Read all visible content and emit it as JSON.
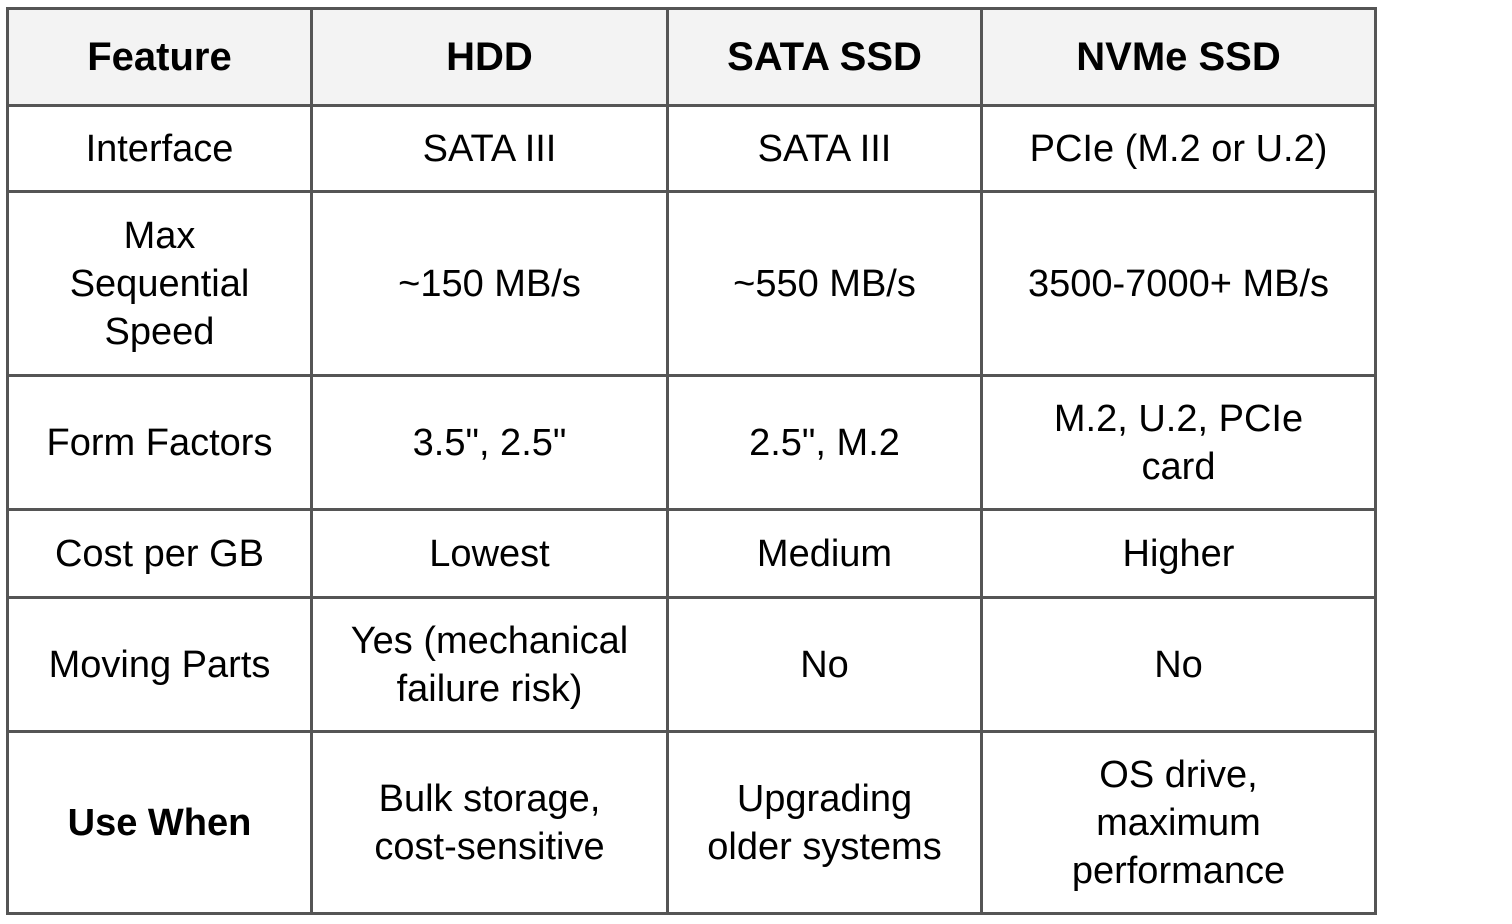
{
  "table": {
    "headers": [
      "Feature",
      "HDD",
      "SATA SSD",
      "NVMe SSD"
    ],
    "rows": [
      {
        "feature": "Interface",
        "hdd": "SATA III",
        "sata_ssd": "SATA III",
        "nvme_ssd": "PCIe (M.2 or U.2)"
      },
      {
        "feature": "Max Sequential Speed",
        "hdd": "~150 MB/s",
        "sata_ssd": "~550 MB/s",
        "nvme_ssd": "3500-7000+ MB/s"
      },
      {
        "feature": "Form Factors",
        "hdd": "3.5\", 2.5\"",
        "sata_ssd": "2.5\", M.2",
        "nvme_ssd": "M.2, U.2, PCIe card"
      },
      {
        "feature": "Cost per GB",
        "hdd": "Lowest",
        "sata_ssd": "Medium",
        "nvme_ssd": "Higher"
      },
      {
        "feature": "Moving Parts",
        "hdd": "Yes (mechanical failure risk)",
        "sata_ssd": "No",
        "nvme_ssd": "No"
      },
      {
        "feature": "Use When",
        "hdd": "Bulk storage, cost-sensitive",
        "sata_ssd": "Upgrading older systems",
        "nvme_ssd": "OS drive, maximum performance"
      }
    ]
  }
}
